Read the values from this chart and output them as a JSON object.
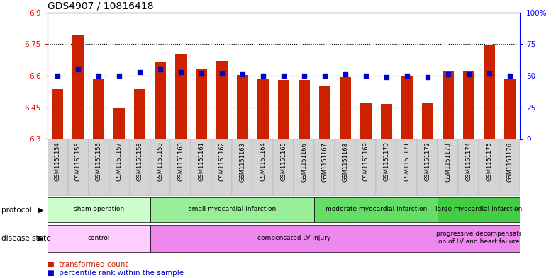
{
  "title": "GDS4907 / 10816418",
  "samples": [
    "GSM1151154",
    "GSM1151155",
    "GSM1151156",
    "GSM1151157",
    "GSM1151158",
    "GSM1151159",
    "GSM1151160",
    "GSM1151161",
    "GSM1151162",
    "GSM1151163",
    "GSM1151164",
    "GSM1151165",
    "GSM1151166",
    "GSM1151167",
    "GSM1151168",
    "GSM1151169",
    "GSM1151170",
    "GSM1151171",
    "GSM1151172",
    "GSM1151173",
    "GSM1151174",
    "GSM1151175",
    "GSM1151176"
  ],
  "bar_values": [
    6.535,
    6.795,
    6.585,
    6.445,
    6.535,
    6.665,
    6.705,
    6.63,
    6.67,
    6.605,
    6.585,
    6.58,
    6.58,
    6.555,
    6.595,
    6.47,
    6.465,
    6.6,
    6.47,
    6.625,
    6.625,
    6.745,
    6.585
  ],
  "percentile_values": [
    50,
    55,
    50,
    50,
    53,
    55,
    53,
    52,
    52,
    51,
    50,
    50,
    50,
    50,
    51,
    50,
    49,
    50,
    49,
    51,
    51,
    52,
    50
  ],
  "ylim_left": [
    6.3,
    6.9
  ],
  "ylim_right": [
    0,
    100
  ],
  "yticks_left": [
    6.3,
    6.45,
    6.6,
    6.75,
    6.9
  ],
  "yticks_right": [
    0,
    25,
    50,
    75,
    100
  ],
  "ytick_labels_left": [
    "6.3",
    "6.45",
    "6.6",
    "6.75",
    "6.9"
  ],
  "ytick_labels_right": [
    "0",
    "25",
    "50",
    "75",
    "100%"
  ],
  "hlines": [
    6.45,
    6.6,
    6.75
  ],
  "bar_color": "#cc2200",
  "percentile_color": "#0000cc",
  "bar_bottom": 6.3,
  "protocol_groups": [
    {
      "label": "sham operation",
      "start": 0,
      "end": 4,
      "color": "#ccffcc"
    },
    {
      "label": "small myocardial infarction",
      "start": 5,
      "end": 12,
      "color": "#99ee99"
    },
    {
      "label": "moderate myocardial infarction",
      "start": 13,
      "end": 18,
      "color": "#66dd66"
    },
    {
      "label": "large myocardial infarction",
      "start": 19,
      "end": 22,
      "color": "#44cc44"
    }
  ],
  "disease_groups": [
    {
      "label": "control",
      "start": 0,
      "end": 4,
      "color": "#ffccff"
    },
    {
      "label": "compensated LV injury",
      "start": 5,
      "end": 18,
      "color": "#ee88ee"
    },
    {
      "label": "progressive decompensati\non of LV and heart failure",
      "start": 19,
      "end": 22,
      "color": "#ee88ee"
    }
  ],
  "legend_items": [
    {
      "label": "transformed count",
      "color": "#cc2200"
    },
    {
      "label": "percentile rank within the sample",
      "color": "#0000cc"
    }
  ],
  "sample_label_color": "#cccccc",
  "bar_width": 0.55
}
